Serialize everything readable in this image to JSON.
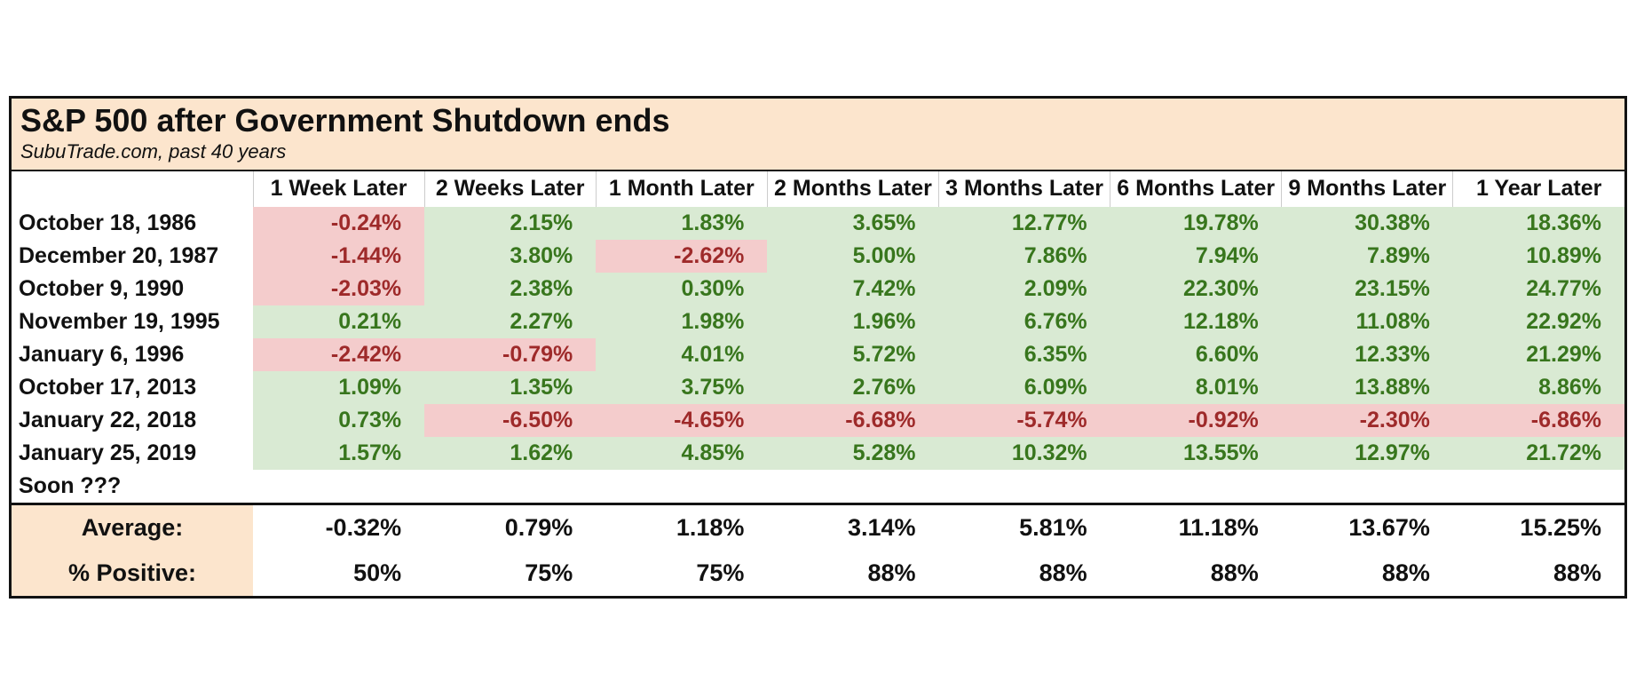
{
  "table": {
    "title": "S&P 500 after Government Shutdown ends",
    "subtitle": "SubuTrade.com, past 40 years",
    "columns": [
      "1 Week Later",
      "2 Weeks Later",
      "1 Month Later",
      "2 Months Later",
      "3 Months Later",
      "6 Months Later",
      "9 Months Later",
      "1 Year Later"
    ],
    "rows": [
      {
        "label": "October 18, 1986",
        "values": [
          "-0.24%",
          "2.15%",
          "1.83%",
          "3.65%",
          "12.77%",
          "19.78%",
          "30.38%",
          "18.36%"
        ]
      },
      {
        "label": "December 20, 1987",
        "values": [
          "-1.44%",
          "3.80%",
          "-2.62%",
          "5.00%",
          "7.86%",
          "7.94%",
          "7.89%",
          "10.89%"
        ]
      },
      {
        "label": "October 9, 1990",
        "values": [
          "-2.03%",
          "2.38%",
          "0.30%",
          "7.42%",
          "2.09%",
          "22.30%",
          "23.15%",
          "24.77%"
        ]
      },
      {
        "label": "November 19, 1995",
        "values": [
          "0.21%",
          "2.27%",
          "1.98%",
          "1.96%",
          "6.76%",
          "12.18%",
          "11.08%",
          "22.92%"
        ]
      },
      {
        "label": "January 6, 1996",
        "values": [
          "-2.42%",
          "-0.79%",
          "4.01%",
          "5.72%",
          "6.35%",
          "6.60%",
          "12.33%",
          "21.29%"
        ]
      },
      {
        "label": "October 17, 2013",
        "values": [
          "1.09%",
          "1.35%",
          "3.75%",
          "2.76%",
          "6.09%",
          "8.01%",
          "13.88%",
          "8.86%"
        ]
      },
      {
        "label": "January 22, 2018",
        "values": [
          "0.73%",
          "-6.50%",
          "-4.65%",
          "-6.68%",
          "-5.74%",
          "-0.92%",
          "-2.30%",
          "-6.86%"
        ]
      },
      {
        "label": "January 25, 2019",
        "values": [
          "1.57%",
          "1.62%",
          "4.85%",
          "5.28%",
          "10.32%",
          "13.55%",
          "12.97%",
          "21.72%"
        ]
      },
      {
        "label": "Soon ???",
        "values": [
          "",
          "",
          "",
          "",
          "",
          "",
          "",
          ""
        ]
      }
    ],
    "summary": [
      {
        "label": "Average:",
        "values": [
          "-0.32%",
          "0.79%",
          "1.18%",
          "3.14%",
          "5.81%",
          "11.18%",
          "13.67%",
          "15.25%"
        ]
      },
      {
        "label": "% Positive:",
        "values": [
          "50%",
          "75%",
          "75%",
          "88%",
          "88%",
          "88%",
          "88%",
          "88%"
        ]
      }
    ],
    "colors": {
      "band_bg": "#fce5cd",
      "positive_bg": "#d9ead3",
      "negative_bg": "#f4cccc",
      "positive_text": "#38761d",
      "negative_text": "#9e2a2a",
      "text": "#111111",
      "border": "#121212",
      "header_divider": "#cccccc"
    }
  },
  "chart_data": {
    "type": "table",
    "title": "S&P 500 after Government Shutdown ends",
    "subtitle": "SubuTrade.com, past 40 years",
    "columns": [
      "1 Week Later",
      "2 Weeks Later",
      "1 Month Later",
      "2 Months Later",
      "3 Months Later",
      "6 Months Later",
      "9 Months Later",
      "1 Year Later"
    ],
    "unit": "percent",
    "rows": [
      {
        "label": "October 18, 1986",
        "values": [
          -0.24,
          2.15,
          1.83,
          3.65,
          12.77,
          19.78,
          30.38,
          18.36
        ]
      },
      {
        "label": "December 20, 1987",
        "values": [
          -1.44,
          3.8,
          -2.62,
          5.0,
          7.86,
          7.94,
          7.89,
          10.89
        ]
      },
      {
        "label": "October 9, 1990",
        "values": [
          -2.03,
          2.38,
          0.3,
          7.42,
          2.09,
          22.3,
          23.15,
          24.77
        ]
      },
      {
        "label": "November 19, 1995",
        "values": [
          0.21,
          2.27,
          1.98,
          1.96,
          6.76,
          12.18,
          11.08,
          22.92
        ]
      },
      {
        "label": "January 6, 1996",
        "values": [
          -2.42,
          -0.79,
          4.01,
          5.72,
          6.35,
          6.6,
          12.33,
          21.29
        ]
      },
      {
        "label": "October 17, 2013",
        "values": [
          1.09,
          1.35,
          3.75,
          2.76,
          6.09,
          8.01,
          13.88,
          8.86
        ]
      },
      {
        "label": "January 22, 2018",
        "values": [
          0.73,
          -6.5,
          -4.65,
          -6.68,
          -5.74,
          -0.92,
          -2.3,
          -6.86
        ]
      },
      {
        "label": "January 25, 2019",
        "values": [
          1.57,
          1.62,
          4.85,
          5.28,
          10.32,
          13.55,
          12.97,
          21.72
        ]
      },
      {
        "label": "Soon ???",
        "values": [
          null,
          null,
          null,
          null,
          null,
          null,
          null,
          null
        ]
      }
    ],
    "average": [
      -0.32,
      0.79,
      1.18,
      3.14,
      5.81,
      11.18,
      13.67,
      15.25
    ],
    "percent_positive": [
      50,
      75,
      75,
      88,
      88,
      88,
      88,
      88
    ],
    "cell_color_rule": "negative values: red text on pink; positive values: green text on light green"
  }
}
